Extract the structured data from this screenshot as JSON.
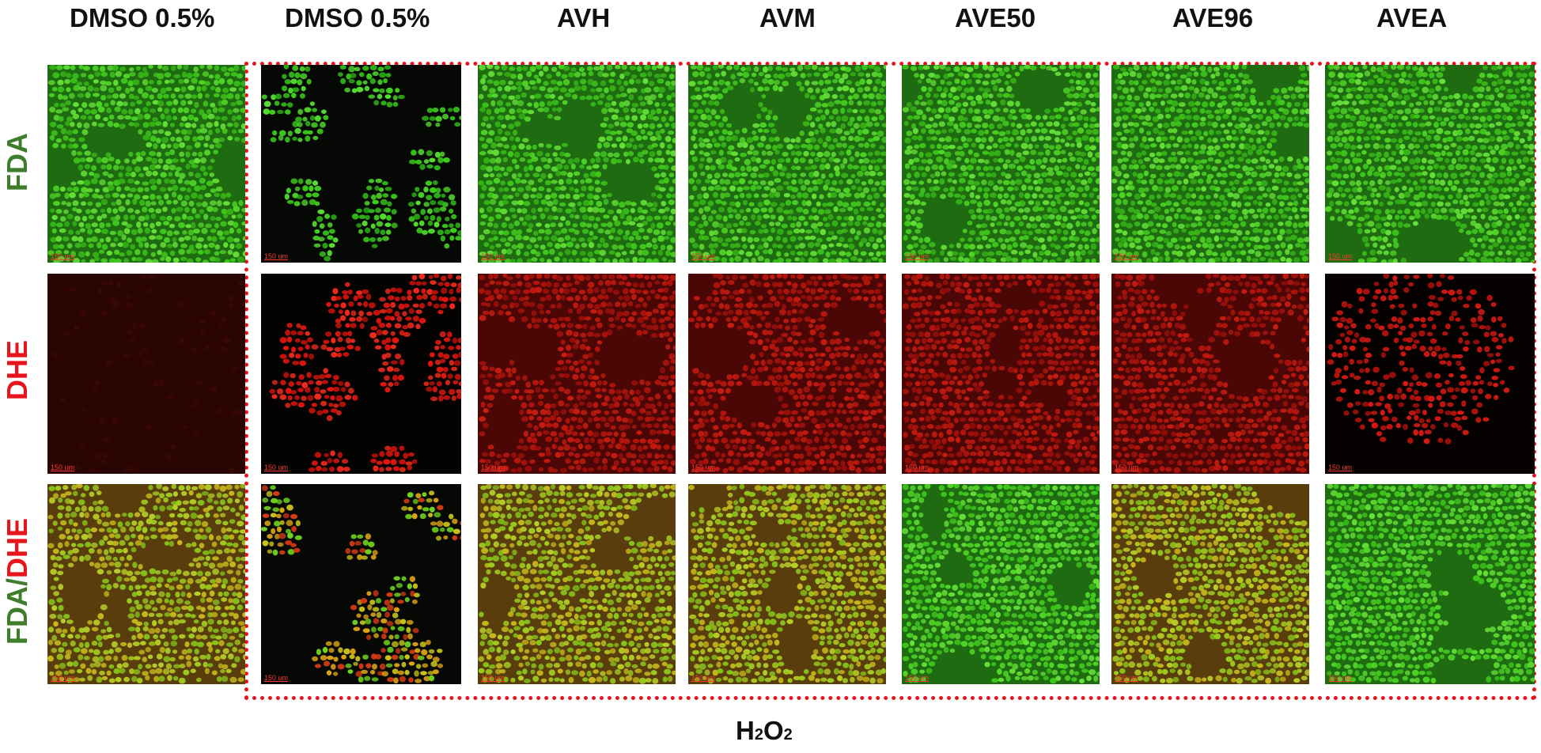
{
  "column_headers": [
    "DMSO 0.5%",
    "DMSO 0.5%",
    "AVH",
    "AVM",
    "AVE50",
    "AVE96",
    "AVEA"
  ],
  "row_labels": {
    "fda": "FDA",
    "dhe": "DHE",
    "merge_fda": "FDA",
    "merge_slash": "/",
    "merge_dhe": "DHE"
  },
  "scale_bar_text": "150 um",
  "bottom_label": {
    "prefix": "H",
    "sub1": "2",
    "mid": "O",
    "sub2": "2"
  },
  "colors": {
    "fda": "#3e7d2a",
    "dhe": "#e8141c",
    "box_border": "#e8141c",
    "fda_stain": "#3fd21f",
    "dhe_stain": "#e3140f",
    "merge_stain": "#9bcc1a"
  }
}
